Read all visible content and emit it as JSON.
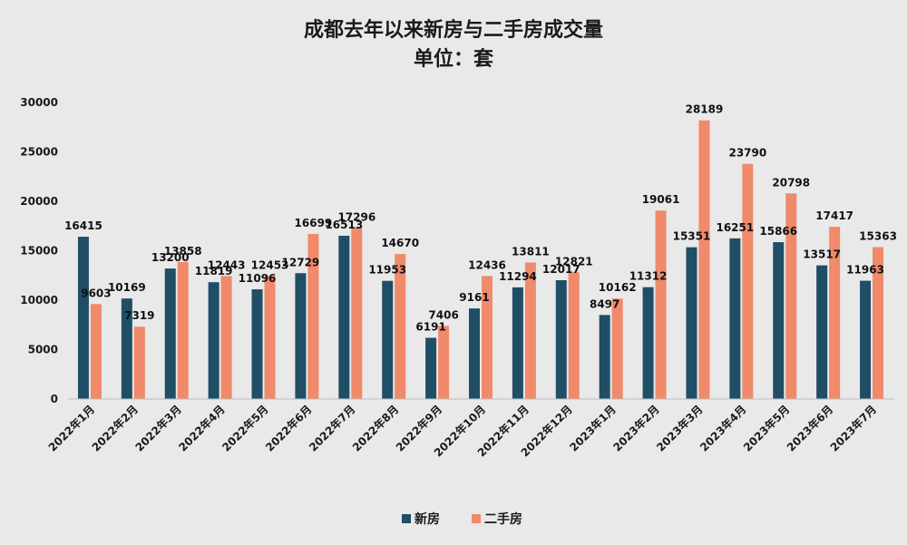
{
  "chart_data": {
    "type": "bar",
    "title": "成都去年以来新房与二手房成交量",
    "subtitle": "单位：套",
    "categories": [
      "2022年1月",
      "2022年2月",
      "2022年3月",
      "2022年4月",
      "2022年5月",
      "2022年6月",
      "2022年7月",
      "2022年8月",
      "2022年9月",
      "2022年10月",
      "2022年11月",
      "2022年12月",
      "2023年1月",
      "2023年2月",
      "2023年3月",
      "2023年4月",
      "2023年5月",
      "2023年6月",
      "2023年7月"
    ],
    "series": [
      {
        "name": "新房",
        "color": "#1f4e66",
        "values": [
          16415,
          10169,
          13200,
          11819,
          11096,
          12729,
          16513,
          11953,
          6191,
          9161,
          11294,
          12017,
          8497,
          11312,
          15351,
          16251,
          15866,
          13517,
          11963
        ]
      },
      {
        "name": "二手房",
        "color": "#f08a6a",
        "values": [
          9603,
          7319,
          13858,
          12443,
          12453,
          16699,
          17296,
          14670,
          7406,
          12436,
          13811,
          12821,
          10162,
          19061,
          28189,
          23790,
          20798,
          17417,
          15363
        ]
      }
    ],
    "ylim": [
      0,
      30000
    ],
    "yticks": [
      0,
      5000,
      10000,
      15000,
      20000,
      25000,
      30000
    ],
    "grid": false,
    "legend": "bottom"
  }
}
